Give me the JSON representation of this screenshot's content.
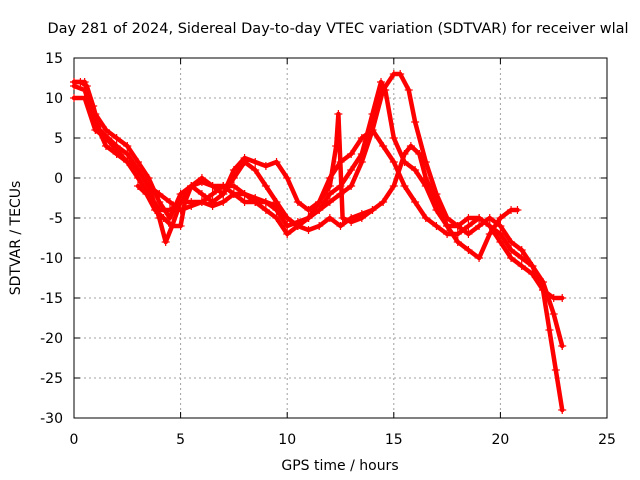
{
  "chart_data": {
    "type": "scatter",
    "title": "Day 281 of 2024, Sidereal Day-to-day VTEC variation (SDTVAR) for receiver wlal",
    "xlabel": "GPS time / hours",
    "ylabel": "SDTVAR / TECUs",
    "xlim": [
      0,
      25
    ],
    "ylim": [
      -30,
      15
    ],
    "xticks": [
      0,
      5,
      10,
      15,
      20,
      25
    ],
    "yticks": [
      -30,
      -25,
      -20,
      -15,
      -10,
      -5,
      0,
      5,
      10,
      15
    ],
    "grid": true,
    "marker": "plus",
    "color": "#ff0000",
    "series": [
      {
        "name": "track-1",
        "points": [
          [
            0,
            12
          ],
          [
            0.3,
            12
          ],
          [
            0.6,
            11.5
          ],
          [
            0.9,
            9
          ],
          [
            1.2,
            6
          ],
          [
            1.6,
            5
          ],
          [
            2,
            4
          ],
          [
            2.5,
            3
          ],
          [
            3,
            1
          ],
          [
            3.5,
            -1
          ],
          [
            4,
            -5
          ],
          [
            4.3,
            -8
          ],
          [
            4.6,
            -6
          ],
          [
            5,
            -3
          ],
          [
            5.5,
            -1
          ],
          [
            6,
            0
          ],
          [
            6.5,
            -1
          ],
          [
            7,
            -2
          ],
          [
            7.5,
            0
          ],
          [
            8,
            2
          ],
          [
            8.5,
            1
          ],
          [
            9,
            -1
          ],
          [
            9.5,
            -3
          ],
          [
            10,
            -5
          ],
          [
            10.5,
            -6
          ],
          [
            11,
            -5
          ],
          [
            11.5,
            -4
          ],
          [
            12,
            -3
          ],
          [
            12.5,
            -2
          ],
          [
            13,
            -1
          ],
          [
            13.5,
            2
          ],
          [
            14,
            6
          ],
          [
            14.5,
            11
          ],
          [
            15,
            13
          ],
          [
            15.3,
            13
          ],
          [
            15.7,
            11
          ],
          [
            16,
            7
          ],
          [
            16.5,
            2
          ],
          [
            17,
            -2
          ],
          [
            17.5,
            -5
          ],
          [
            18,
            -6
          ],
          [
            18.5,
            -7
          ],
          [
            19,
            -6
          ],
          [
            19.5,
            -5
          ],
          [
            20,
            -6
          ],
          [
            20.5,
            -8
          ],
          [
            21,
            -9
          ],
          [
            21.5,
            -11
          ],
          [
            22,
            -13
          ],
          [
            22.5,
            -17
          ],
          [
            22.9,
            -21
          ]
        ]
      },
      {
        "name": "track-2",
        "points": [
          [
            0,
            11.5
          ],
          [
            0.5,
            11
          ],
          [
            1,
            7
          ],
          [
            1.5,
            4
          ],
          [
            2,
            3
          ],
          [
            2.5,
            2
          ],
          [
            3,
            0
          ],
          [
            3.5,
            -2
          ],
          [
            4,
            -4
          ],
          [
            4.5,
            -4
          ],
          [
            5,
            -3
          ],
          [
            5.5,
            -3
          ],
          [
            6,
            -3
          ],
          [
            6.5,
            -3.5
          ],
          [
            7,
            -3
          ],
          [
            7.5,
            -2
          ],
          [
            8,
            -2
          ],
          [
            8.5,
            -3
          ],
          [
            9,
            -4
          ],
          [
            9.5,
            -5
          ],
          [
            10,
            -7
          ],
          [
            10.5,
            -6
          ],
          [
            11,
            -5
          ],
          [
            11.5,
            -3
          ],
          [
            12,
            0
          ],
          [
            12.5,
            2
          ],
          [
            13,
            3
          ],
          [
            13.5,
            5
          ],
          [
            14,
            6
          ],
          [
            14.5,
            4
          ],
          [
            15,
            2
          ],
          [
            15.5,
            -1
          ],
          [
            16,
            -3
          ],
          [
            16.5,
            -5
          ],
          [
            17,
            -6
          ],
          [
            17.5,
            -7
          ],
          [
            18,
            -7
          ],
          [
            18.5,
            -6
          ],
          [
            19,
            -5
          ],
          [
            19.5,
            -6
          ],
          [
            20,
            -7
          ],
          [
            20.5,
            -9
          ],
          [
            21,
            -10
          ],
          [
            21.5,
            -11
          ],
          [
            22,
            -14
          ],
          [
            22.3,
            -19
          ],
          [
            22.6,
            -24
          ],
          [
            22.9,
            -29
          ]
        ]
      },
      {
        "name": "track-3",
        "points": [
          [
            0,
            12
          ],
          [
            0.5,
            12
          ],
          [
            1,
            8
          ],
          [
            1.5,
            6
          ],
          [
            2,
            5
          ],
          [
            2.5,
            4
          ],
          [
            3,
            2
          ],
          [
            3.5,
            0
          ],
          [
            4,
            -3
          ],
          [
            4.5,
            -5
          ],
          [
            5,
            -2
          ],
          [
            5.5,
            -1
          ],
          [
            6,
            -2
          ],
          [
            6.5,
            -3
          ],
          [
            7,
            -2
          ],
          [
            7.5,
            1
          ],
          [
            8,
            2.5
          ],
          [
            8.5,
            2
          ],
          [
            9,
            1.5
          ],
          [
            9.5,
            2
          ],
          [
            10,
            0
          ],
          [
            10.5,
            -3
          ],
          [
            11,
            -4
          ],
          [
            11.5,
            -3
          ],
          [
            12,
            -1
          ],
          [
            12.3,
            4
          ],
          [
            12.4,
            8
          ],
          [
            12.6,
            -5
          ],
          [
            13,
            -5.5
          ],
          [
            13.5,
            -5
          ],
          [
            14,
            -4
          ],
          [
            14.5,
            -3
          ],
          [
            15,
            -1
          ],
          [
            15.5,
            3
          ],
          [
            15.8,
            4
          ],
          [
            16.2,
            3
          ],
          [
            16.5,
            0
          ],
          [
            17,
            -3
          ],
          [
            17.5,
            -6
          ],
          [
            18,
            -8
          ],
          [
            18.5,
            -9
          ],
          [
            19,
            -10
          ],
          [
            19.5,
            -7
          ],
          [
            20,
            -5
          ],
          [
            20.5,
            -4
          ],
          [
            20.8,
            -4
          ]
        ]
      },
      {
        "name": "track-4",
        "points": [
          [
            0,
            10
          ],
          [
            0.5,
            10
          ],
          [
            1,
            6
          ],
          [
            1.5,
            5
          ],
          [
            2,
            3.5
          ],
          [
            2.5,
            2
          ],
          [
            3,
            1
          ],
          [
            3.5,
            -1
          ],
          [
            4,
            -2
          ],
          [
            4.5,
            -3
          ],
          [
            5,
            -4
          ],
          [
            5.5,
            -3.5
          ],
          [
            6,
            -3
          ],
          [
            6.5,
            -2
          ],
          [
            7,
            -1
          ],
          [
            7.5,
            -2
          ],
          [
            8,
            -3
          ],
          [
            8.5,
            -3
          ],
          [
            9,
            -3
          ],
          [
            9.5,
            -4
          ],
          [
            10,
            -6
          ],
          [
            10.5,
            -5.5
          ],
          [
            11,
            -5
          ],
          [
            11.5,
            -4
          ],
          [
            12,
            -2
          ],
          [
            12.5,
            -1
          ],
          [
            13,
            1
          ],
          [
            13.5,
            3
          ],
          [
            14,
            8
          ],
          [
            14.4,
            12
          ],
          [
            14.6,
            11
          ],
          [
            15,
            5
          ],
          [
            15.5,
            2
          ],
          [
            16,
            1
          ],
          [
            16.5,
            -1
          ],
          [
            17,
            -4
          ],
          [
            17.5,
            -6
          ],
          [
            18,
            -6
          ],
          [
            18.5,
            -5
          ],
          [
            19,
            -5
          ],
          [
            19.5,
            -6
          ],
          [
            20,
            -8
          ],
          [
            20.5,
            -10
          ],
          [
            21,
            -11
          ],
          [
            21.5,
            -12
          ],
          [
            22,
            -14
          ],
          [
            22.5,
            -15
          ],
          [
            22.9,
            -15
          ]
        ]
      },
      {
        "name": "track-5",
        "points": [
          [
            3,
            -1
          ],
          [
            3.4,
            -2
          ],
          [
            3.8,
            -4
          ],
          [
            4.2,
            -5
          ],
          [
            4.6,
            -6
          ],
          [
            5,
            -6
          ],
          [
            5.2,
            -3
          ],
          [
            5.5,
            -1
          ],
          [
            6,
            -0.5
          ],
          [
            6.5,
            -1
          ],
          [
            7,
            -1
          ],
          [
            7.5,
            -1
          ],
          [
            8,
            -2
          ],
          [
            8.5,
            -2.5
          ],
          [
            9,
            -3
          ],
          [
            9.5,
            -3.5
          ],
          [
            10,
            -5
          ],
          [
            10.5,
            -6
          ],
          [
            11,
            -6.5
          ],
          [
            11.5,
            -6
          ],
          [
            12,
            -5
          ],
          [
            12.5,
            -6
          ],
          [
            13,
            -5
          ],
          [
            13.5,
            -4.5
          ],
          [
            14,
            -4
          ]
        ]
      }
    ]
  }
}
